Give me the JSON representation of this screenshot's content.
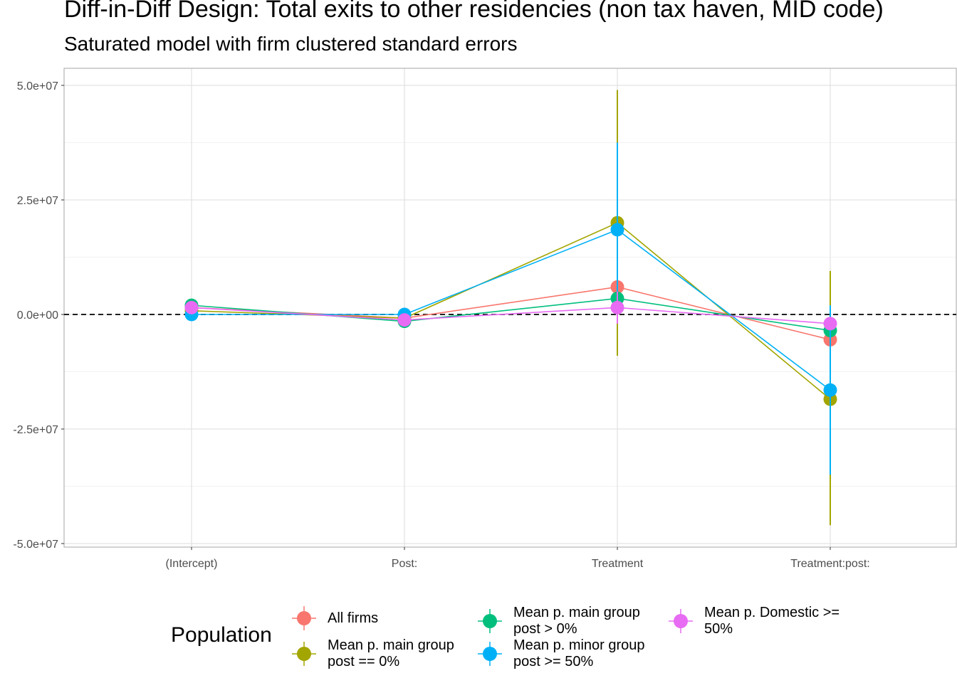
{
  "title": "Diff-in-Diff Design: Total exits to other residencies (non tax haven, MID code)",
  "subtitle": "Saturated model with firm clustered standard errors",
  "legend": {
    "title": "Population",
    "items": [
      {
        "label_line1": "All firms",
        "label_line2": "",
        "color": "#F8766D"
      },
      {
        "label_line1": "Mean p. main group",
        "label_line2": "post == 0%",
        "color": "#A3A500"
      },
      {
        "label_line1": "Mean p. main group",
        "label_line2": "post > 0%",
        "color": "#00BF7D"
      },
      {
        "label_line1": "Mean p. minor group",
        "label_line2": "post >= 50%",
        "color": "#00B0F6"
      },
      {
        "label_line1": "Mean p. Domestic >=",
        "label_line2": "50%",
        "color": "#E76BF3"
      }
    ]
  },
  "chart_data": {
    "type": "line",
    "categories": [
      "(Intercept)",
      "Post:",
      "Treatment",
      "Treatment:post:"
    ],
    "ylim": [
      -50000000,
      50000000
    ],
    "y_ticks": [
      50000000,
      25000000,
      0,
      -25000000,
      -50000000
    ],
    "y_tick_labels": [
      "5.0e+07",
      "2.5e+07",
      "0.0e+00",
      "-2.5e+07",
      "-5.0e+07"
    ],
    "reference_line": 0,
    "grid": true,
    "series": [
      {
        "name": "All firms",
        "color": "#F8766D",
        "values": [
          1500000,
          -800000,
          6000000,
          -5500000
        ],
        "lower": [
          null,
          null,
          null,
          null
        ],
        "upper": [
          null,
          null,
          null,
          null
        ]
      },
      {
        "name": "Mean p. main group post == 0%",
        "color": "#A3A500",
        "values": [
          800000,
          -800000,
          20000000,
          -18500000
        ],
        "lower": [
          null,
          null,
          -9000000,
          -46000000
        ],
        "upper": [
          null,
          null,
          49000000,
          9500000
        ]
      },
      {
        "name": "Mean p. main group post > 0%",
        "color": "#00BF7D",
        "values": [
          2000000,
          -1500000,
          3500000,
          -3500000
        ],
        "lower": [
          null,
          null,
          null,
          null
        ],
        "upper": [
          null,
          null,
          null,
          null
        ]
      },
      {
        "name": "Mean p. minor group post >= 50%",
        "color": "#00B0F6",
        "values": [
          0,
          0,
          18500000,
          -16500000
        ],
        "lower": [
          null,
          null,
          -1000000,
          -35000000
        ],
        "upper": [
          null,
          null,
          37500000,
          2000000
        ]
      },
      {
        "name": "Mean p. Domestic >= 50%",
        "color": "#E76BF3",
        "values": [
          1500000,
          -1200000,
          1500000,
          -2000000
        ],
        "lower": [
          null,
          null,
          -2000000,
          null
        ],
        "upper": [
          null,
          null,
          5000000,
          null
        ]
      }
    ]
  }
}
